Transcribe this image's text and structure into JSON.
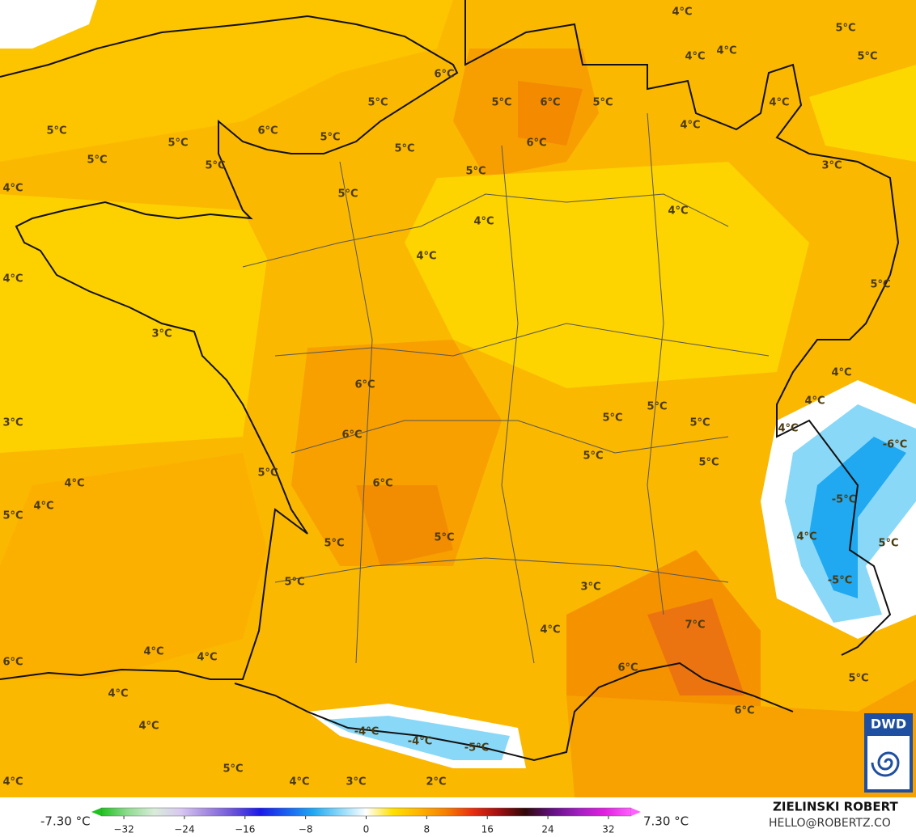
{
  "map_labels": [
    "4°C",
    "5°C",
    "4°C",
    "4°C",
    "5°C",
    "6°C",
    "5°C",
    "5°C",
    "6°C",
    "5°C",
    "4°C",
    "5°C",
    "6°C",
    "5°C",
    "4°C",
    "6°C",
    "5°C",
    "5°C",
    "5°C",
    "5°C",
    "5°C",
    "3°C",
    "4°C",
    "5°C",
    "4°C",
    "4°C",
    "4°C",
    "4°C",
    "5°C",
    "3°C",
    "4°C",
    "6°C",
    "4°C",
    "5°C",
    "5°C",
    "5°C",
    "3°C",
    "4°C",
    "6°C",
    "-6°C",
    "5°C",
    "5°C",
    "5°C",
    "4°C",
    "6°C",
    "-5°C",
    "4°C",
    "5°C",
    "4°C",
    "5°C",
    "5°C",
    "5°C",
    "-5°C",
    "5°C",
    "3°C",
    "7°C",
    "4°C",
    "4°C",
    "4°C",
    "6°C",
    "6°C",
    "5°C",
    "4°C",
    "6°C",
    "4°C",
    "-4°C",
    "-4°C",
    "-5°C",
    "5°C",
    "4°C",
    "4°C",
    "3°C",
    "2°C"
  ],
  "colorbar": {
    "min_label": "-7.30 °C",
    "max_label": "7.30 °C",
    "range": [
      -35,
      35
    ],
    "ticks": [
      {
        "value": -32,
        "label": "−32"
      },
      {
        "value": -24,
        "label": "−24"
      },
      {
        "value": -16,
        "label": "−16"
      },
      {
        "value": -8,
        "label": "−8"
      },
      0,
      8,
      16,
      24,
      32
    ],
    "colors": [
      "#1fc21f",
      "#8fdc8f",
      "#d9ecd9",
      "#d8c8f0",
      "#a48ae0",
      "#6a52d8",
      "#1a1ae8",
      "#1a60f0",
      "#20a8f0",
      "#8ad8f8",
      "#ffffff",
      "#ffe000",
      "#ffb400",
      "#f58000",
      "#e83010",
      "#a01010",
      "#300808",
      "#601080",
      "#a020c0",
      "#e020e0",
      "#ff60ff"
    ]
  },
  "credit": {
    "author": "ZIELINSKI ROBERT",
    "email": "HELLO@ROBERTZ.CO",
    "logo": "DWD"
  }
}
